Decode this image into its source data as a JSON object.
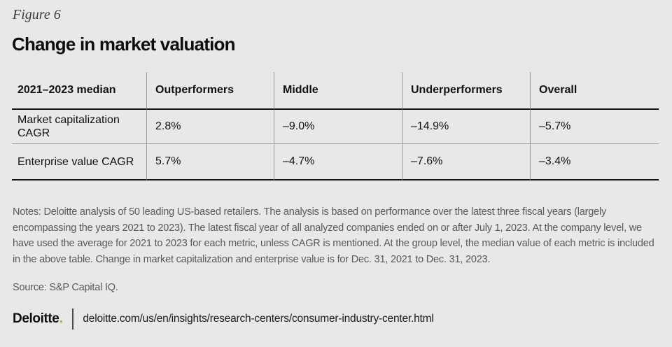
{
  "page": {
    "figure_label": "Figure 6",
    "title": "Change in market valuation"
  },
  "chart_data": {
    "type": "table",
    "columns": [
      "2021–2023 median",
      "Outperformers",
      "Middle",
      "Underperformers",
      "Overall"
    ],
    "rows": [
      {
        "label": "Market capitalization CAGR",
        "values": [
          "2.8%",
          "–9.0%",
          "–14.9%",
          "–5.7%"
        ]
      },
      {
        "label": "Enterprise value CAGR",
        "values": [
          "5.7%",
          "–4.7%",
          "–7.6%",
          "–3.4%"
        ]
      }
    ]
  },
  "notes": "Notes: Deloitte analysis of 50 leading US-based retailers. The analysis is based on performance over the latest three fiscal years (largely encompassing the years 2021 to 2023). The latest fiscal year of all analyzed companies ended on or after July 1, 2023. At the company level, we have used the average for 2021 to 2023 for each metric, unless CAGR is mentioned. At the group level, the median value of each metric is included in the above table. Change in market capitalization and enterprise value is for Dec. 31, 2021 to Dec. 31, 2023.",
  "source": "Source: S&P Capital IQ.",
  "footer": {
    "brand": "Deloitte",
    "brand_dot": ".",
    "url": "deloitte.com/us/en/insights/research-centers/consumer-industry-center.html"
  },
  "colors": {
    "background": "#e8e8e8",
    "text": "#111111",
    "muted_text": "#58595b",
    "deloitte_green": "#86bc25",
    "grid_line": "#9b9b9b"
  }
}
